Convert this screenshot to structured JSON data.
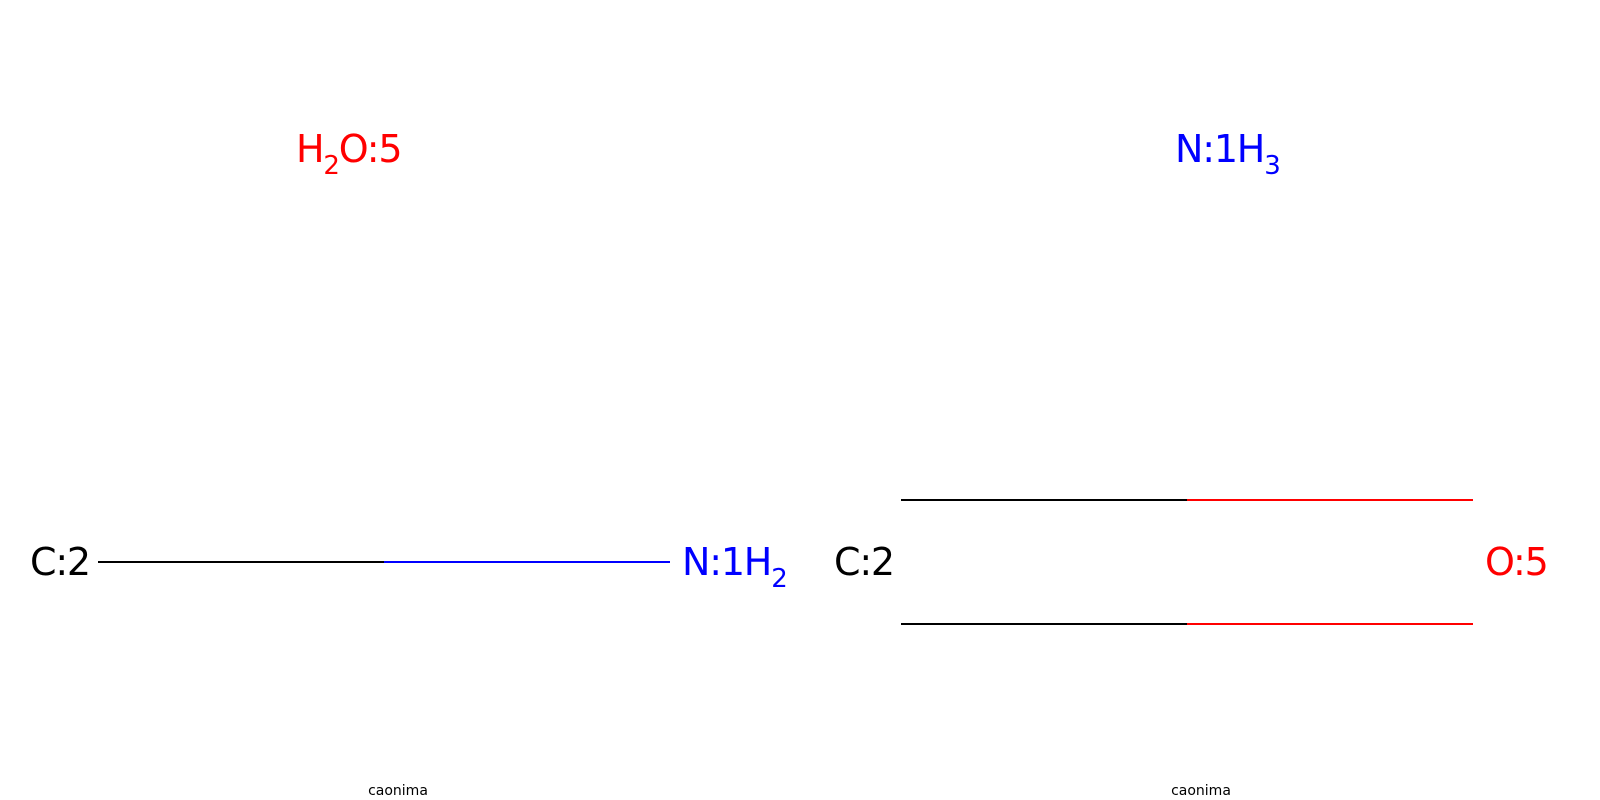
{
  "colors": {
    "carbon": "#000000",
    "nitrogen": "#0000FF",
    "oxygen": "#FF0000"
  },
  "panels": [
    {
      "caption": "caonima",
      "atoms": {
        "water": {
          "main": "H",
          "sub": "2",
          "rest": "O:5",
          "color_key": "oxygen"
        },
        "carbon": {
          "main": "C:2",
          "color_key": "carbon"
        },
        "nitrogen": {
          "main": "N:1H",
          "sub": "2",
          "color_key": "nitrogen"
        }
      },
      "bond_order": 1
    },
    {
      "caption": "caonima",
      "atoms": {
        "ammonia": {
          "main": "N:1H",
          "sub": "3",
          "color_key": "nitrogen"
        },
        "carbon": {
          "main": "C:2",
          "color_key": "carbon"
        },
        "oxygen": {
          "main": "O:5",
          "color_key": "oxygen"
        }
      },
      "bond_order": 2
    }
  ]
}
